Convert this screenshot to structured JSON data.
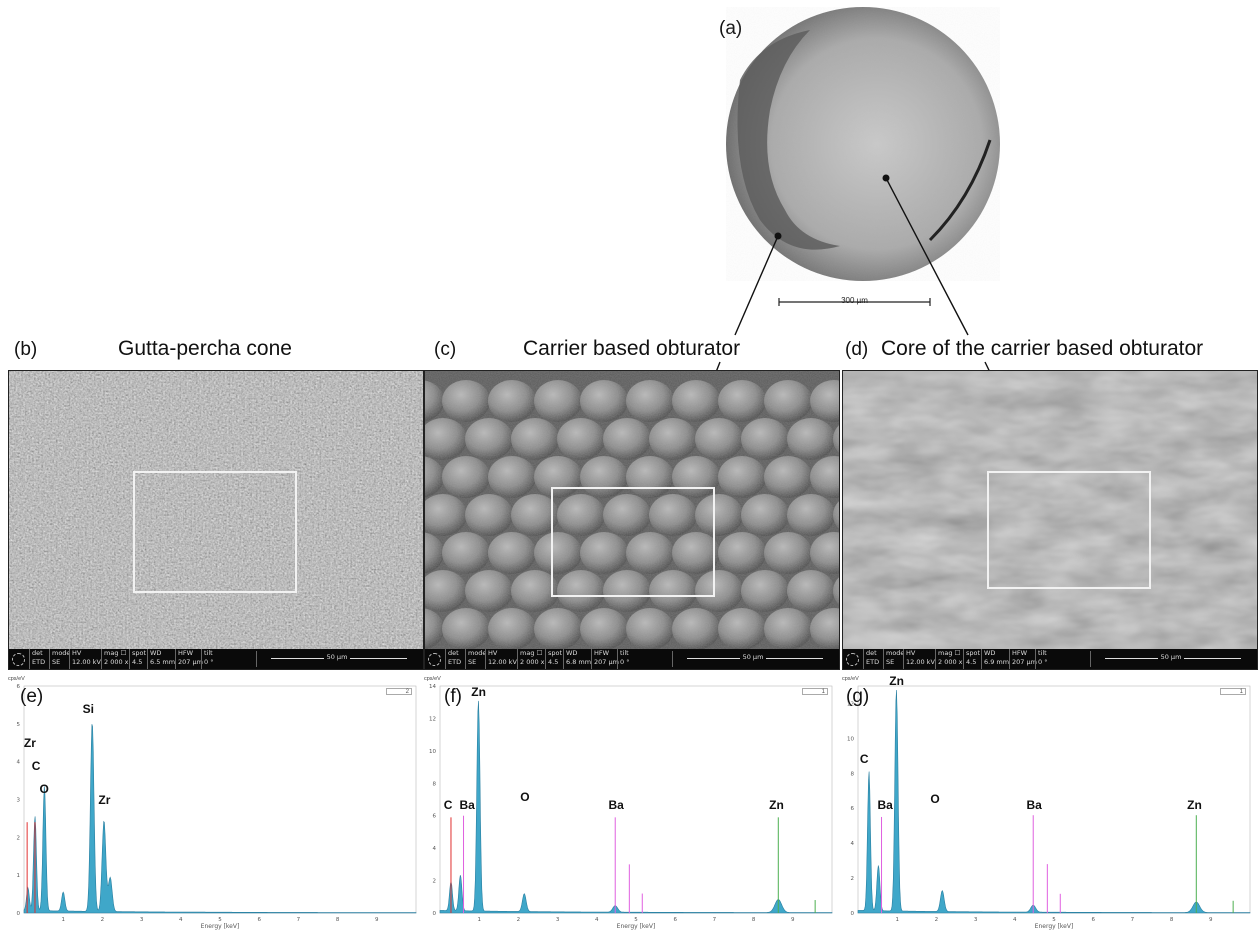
{
  "panels": {
    "a": {
      "label": "(a)",
      "scale_text": "300 µm"
    },
    "b": {
      "label": "(b)",
      "title": "Gutta-percha cone"
    },
    "c": {
      "label": "(c)",
      "title": "Carrier based obturator"
    },
    "d": {
      "label": "(d)",
      "title": "Core of the carrier based obturator"
    },
    "e": {
      "label": "(e)"
    },
    "f": {
      "label": "(f)"
    },
    "g": {
      "label": "(g)"
    }
  },
  "sem_bars": [
    {
      "det": "ETD",
      "mode": "SE",
      "hv": "12.00 kV",
      "mag": "2 000 x",
      "spot": "4.5",
      "wd": "6.5 mm",
      "hfw": "207 µm",
      "tilt": "0 °",
      "scale": "50 µm"
    },
    {
      "det": "ETD",
      "mode": "SE",
      "hv": "12.00 kV",
      "mag": "2 000 x",
      "spot": "4.5",
      "wd": "6.8 mm",
      "hfw": "207 µm",
      "tilt": "0 °",
      "scale": "50 µm"
    },
    {
      "det": "ETD",
      "mode": "SE",
      "hv": "12.00 kV",
      "mag": "2 000 x",
      "spot": "4.5",
      "wd": "6.9 mm",
      "hfw": "207 µm",
      "tilt": "0 °",
      "scale": "50 µm"
    }
  ],
  "bar_headers": {
    "det": "det",
    "mode": "mode",
    "hv": "HV",
    "mag": "mag ☐",
    "spot": "spot",
    "wd": "WD",
    "hfw": "HFW",
    "tilt": "tilt"
  },
  "colors": {
    "spectrum_fill": "#3fa7c9",
    "spectrum_dark": "#2a7fa0",
    "marker_pink": "#e060e0",
    "marker_red": "#e03030",
    "marker_green": "#4caf50"
  },
  "chart_data": [
    {
      "type": "area",
      "panel": "(e)",
      "ylabel": "cps/eV",
      "xlabel": "Energy [keV]",
      "xlim": [
        0,
        10
      ],
      "ylim": [
        0,
        6
      ],
      "yticks": [
        0,
        1,
        2,
        3,
        4,
        5,
        6
      ],
      "xticks": [
        1,
        2,
        3,
        4,
        5,
        6,
        7,
        8,
        9
      ],
      "legend": "2",
      "peaks": [
        {
          "x": 0.1,
          "y": 0.6
        },
        {
          "x": 0.28,
          "y": 2.5
        },
        {
          "x": 0.52,
          "y": 3.3
        },
        {
          "x": 1.0,
          "y": 0.5
        },
        {
          "x": 1.74,
          "y": 5.0
        },
        {
          "x": 2.04,
          "y": 2.4
        },
        {
          "x": 2.2,
          "y": 0.9
        }
      ],
      "markers": [
        {
          "x": 0.08,
          "y": 2.4,
          "color": "#e03030"
        },
        {
          "x": 0.28,
          "y": 2.4,
          "color": "#e03030"
        }
      ],
      "labels": [
        {
          "text": "Zr",
          "x": 0.15,
          "y": 4.3
        },
        {
          "text": "C",
          "x": 0.35,
          "y": 3.7
        },
        {
          "text": "O",
          "x": 0.55,
          "y": 3.1
        },
        {
          "text": "Si",
          "x": 1.65,
          "y": 5.2
        },
        {
          "text": "Zr",
          "x": 2.05,
          "y": 2.8
        }
      ]
    },
    {
      "type": "area",
      "panel": "(f)",
      "ylabel": "cps/eV",
      "xlabel": "Energy [keV]",
      "xlim": [
        0,
        10
      ],
      "ylim": [
        0,
        14
      ],
      "yticks": [
        0,
        2,
        4,
        6,
        8,
        10,
        12,
        14
      ],
      "xticks": [
        1,
        2,
        3,
        4,
        5,
        6,
        7,
        8,
        9
      ],
      "legend": "1",
      "peaks": [
        {
          "x": 0.28,
          "y": 1.8
        },
        {
          "x": 0.52,
          "y": 2.2
        },
        {
          "x": 0.98,
          "y": 13.0
        },
        {
          "x": 2.15,
          "y": 1.1
        },
        {
          "x": 4.47,
          "y": 0.4
        },
        {
          "x": 8.63,
          "y": 0.8
        }
      ],
      "markers": [
        {
          "x": 0.28,
          "y": 5.9,
          "color": "#e03030"
        },
        {
          "x": 0.6,
          "y": 6.0,
          "color": "#e060e0"
        },
        {
          "x": 4.47,
          "y": 5.9,
          "color": "#e060e0"
        },
        {
          "x": 4.83,
          "y": 3.0,
          "color": "#e060e0"
        },
        {
          "x": 5.16,
          "y": 1.2,
          "color": "#e060e0"
        },
        {
          "x": 8.63,
          "y": 5.9,
          "color": "#4caf50"
        },
        {
          "x": 9.57,
          "y": 0.8,
          "color": "#4caf50"
        }
      ],
      "labels": [
        {
          "text": "C",
          "x": 0.25,
          "y": 6.2
        },
        {
          "text": "Ba",
          "x": 0.65,
          "y": 6.2
        },
        {
          "text": "O",
          "x": 2.2,
          "y": 6.7
        },
        {
          "text": "Zn",
          "x": 0.95,
          "y": 13.2
        },
        {
          "text": "Ba",
          "x": 4.45,
          "y": 6.2
        },
        {
          "text": "Zn",
          "x": 8.55,
          "y": 6.2
        }
      ]
    },
    {
      "type": "area",
      "panel": "(g)",
      "ylabel": "cps/eV",
      "xlabel": "Energy [keV]",
      "xlim": [
        0,
        10
      ],
      "ylim": [
        0,
        13
      ],
      "yticks": [
        0,
        2,
        4,
        6,
        8,
        10,
        12
      ],
      "xticks": [
        1,
        2,
        3,
        4,
        5,
        6,
        7,
        8,
        9
      ],
      "legend": "1",
      "peaks": [
        {
          "x": 0.28,
          "y": 8.0
        },
        {
          "x": 0.52,
          "y": 2.6
        },
        {
          "x": 0.98,
          "y": 12.7
        },
        {
          "x": 2.15,
          "y": 1.2
        },
        {
          "x": 4.47,
          "y": 0.4
        },
        {
          "x": 8.63,
          "y": 0.6
        }
      ],
      "markers": [
        {
          "x": 0.6,
          "y": 5.5,
          "color": "#e060e0"
        },
        {
          "x": 4.47,
          "y": 5.6,
          "color": "#e060e0"
        },
        {
          "x": 4.83,
          "y": 2.8,
          "color": "#e060e0"
        },
        {
          "x": 5.16,
          "y": 1.1,
          "color": "#e060e0"
        },
        {
          "x": 8.63,
          "y": 5.6,
          "color": "#4caf50"
        },
        {
          "x": 9.57,
          "y": 0.7,
          "color": "#4caf50"
        }
      ],
      "labels": [
        {
          "text": "C",
          "x": 0.2,
          "y": 8.4
        },
        {
          "text": "Ba",
          "x": 0.65,
          "y": 5.8
        },
        {
          "text": "O",
          "x": 2.0,
          "y": 6.1
        },
        {
          "text": "Zn",
          "x": 0.95,
          "y": 12.9
        },
        {
          "text": "Ba",
          "x": 4.45,
          "y": 5.8
        },
        {
          "text": "Zn",
          "x": 8.55,
          "y": 5.8
        }
      ]
    }
  ]
}
